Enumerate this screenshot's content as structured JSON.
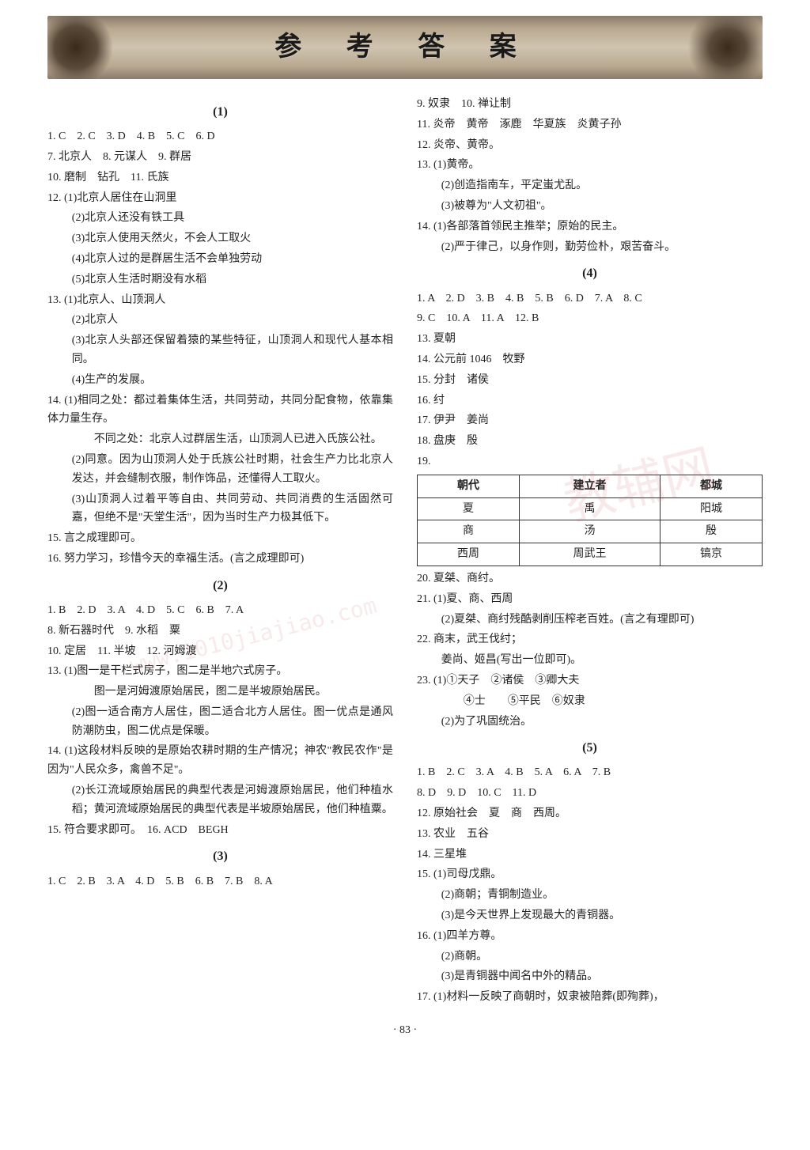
{
  "banner_title": "参 考 答 案",
  "page_number": "· 83 ·",
  "watermark_main": "教辅网",
  "watermark_url": "www.1010jiajiao.com",
  "left": {
    "sec1": {
      "title": "(1)",
      "lines": [
        "1. C　2. C　3. D　4. B　5. C　6. D",
        "7. 北京人　8. 元谋人　9. 群居",
        "10. 磨制　钻孔　11. 氏族",
        "12. (1)北京人居住在山洞里",
        "(2)北京人还没有铁工具",
        "(3)北京人使用天然火，不会人工取火",
        "(4)北京人过的是群居生活不会单独劳动",
        "(5)北京人生活时期没有水稻",
        "13. (1)北京人、山顶洞人",
        "(2)北京人",
        "(3)北京人头部还保留着猿的某些特征，山顶洞人和现代人基本相同。",
        "(4)生产的发展。",
        "14. (1)相同之处：都过着集体生活，共同劳动，共同分配食物，依靠集体力量生存。",
        "不同之处：北京人过群居生活，山顶洞人已进入氏族公社。",
        "(2)同意。因为山顶洞人处于氏族公社时期，社会生产力比北京人发达，并会缝制衣服，制作饰品，还懂得人工取火。",
        "(3)山顶洞人过着平等自由、共同劳动、共同消费的生活固然可嘉，但绝不是\"天堂生活\"，因为当时生产力极其低下。",
        "15. 言之成理即可。",
        "16. 努力学习，珍惜今天的幸福生活。(言之成理即可)"
      ],
      "indents": [
        0,
        0,
        0,
        0,
        1,
        1,
        1,
        1,
        0,
        1,
        1,
        1,
        0,
        2,
        1,
        1,
        0,
        0
      ]
    },
    "sec2": {
      "title": "(2)",
      "lines": [
        "1. B　2. D　3. A　4. D　5. C　6. B　7. A",
        "8. 新石器时代　9. 水稻　粟",
        "10. 定居　11. 半坡　12. 河姆渡",
        "13. (1)图一是干栏式房子，图二是半地穴式房子。",
        "图一是河姆渡原始居民，图二是半坡原始居民。",
        "(2)图一适合南方人居住，图二适合北方人居住。图一优点是通风防潮防虫，图二优点是保暖。",
        "14. (1)这段材料反映的是原始农耕时期的生产情况；神农\"教民农作\"是因为\"人民众多，禽兽不足\"。",
        "(2)长江流域原始居民的典型代表是河姆渡原始居民，他们种植水稻；黄河流域原始居民的典型代表是半坡原始居民，他们种植粟。",
        "15. 符合要求即可。　16. ACD　BEGH"
      ],
      "indents": [
        0,
        0,
        0,
        0,
        2,
        1,
        0,
        1,
        0
      ]
    },
    "sec3": {
      "title": "(3)",
      "lines": [
        "1. C　2. B　3. A　4. D　5. B　6. B　7. B　8. A"
      ],
      "indents": [
        0
      ]
    }
  },
  "right": {
    "sec3b": {
      "lines": [
        "9. 奴隶　10. 禅让制",
        "11. 炎帝　黄帝　涿鹿　华夏族　炎黄子孙",
        "12. 炎帝、黄帝。",
        "13. (1)黄帝。",
        "(2)创造指南车，平定蚩尤乱。",
        "(3)被尊为\"人文初祖\"。",
        "14. (1)各部落首领民主推举；原始的民主。",
        "(2)严于律己，以身作则，勤劳俭朴，艰苦奋斗。"
      ],
      "indents": [
        0,
        0,
        0,
        0,
        1,
        1,
        0,
        1
      ]
    },
    "sec4": {
      "title": "(4)",
      "lines_before": [
        "1. A　2. D　3. B　4. B　5. B　6. D　7. A　8. C",
        "9. C　10. A　11. A　12. B",
        "13. 夏朝",
        "14. 公元前 1046　牧野",
        "15. 分封　诸侯",
        "16. 纣",
        "17. 伊尹　姜尚",
        "18. 盘庚　殷",
        "19."
      ],
      "indents_before": [
        0,
        0,
        0,
        0,
        0,
        0,
        0,
        0,
        0
      ],
      "table": {
        "header": [
          "朝代",
          "建立者",
          "都城"
        ],
        "rows": [
          [
            "夏",
            "禹",
            "阳城"
          ],
          [
            "商",
            "汤",
            "殷"
          ],
          [
            "西周",
            "周武王",
            "镐京"
          ]
        ]
      },
      "lines_after": [
        "20. 夏桀、商纣。",
        "21. (1)夏、商、西周",
        "(2)夏桀、商纣残酷剥削压榨老百姓。(言之有理即可)",
        "22. 商末，武王伐纣；",
        "姜尚、姬昌(写出一位即可)。",
        "23. (1)①天子　②诸侯　③卿大夫",
        "④士　　⑤平民　⑥奴隶",
        "(2)为了巩固统治。"
      ],
      "indents_after": [
        0,
        0,
        1,
        0,
        1,
        0,
        2,
        1
      ]
    },
    "sec5": {
      "title": "(5)",
      "lines": [
        "1. B　2. C　3. A　4. B　5. A　6. A　7. B",
        "8. D　9. D　10. C　11. D",
        "12. 原始社会　夏　商　西周。",
        "13. 农业　五谷",
        "14. 三星堆",
        "15. (1)司母戊鼎。",
        "(2)商朝；青铜制造业。",
        "(3)是今天世界上发现最大的青铜器。",
        "16. (1)四羊方尊。",
        "(2)商朝。",
        "(3)是青铜器中闻名中外的精品。",
        "17. (1)材料一反映了商朝时，奴隶被陪葬(即殉葬)，"
      ],
      "indents": [
        0,
        0,
        0,
        0,
        0,
        0,
        1,
        1,
        0,
        1,
        1,
        0
      ]
    }
  }
}
